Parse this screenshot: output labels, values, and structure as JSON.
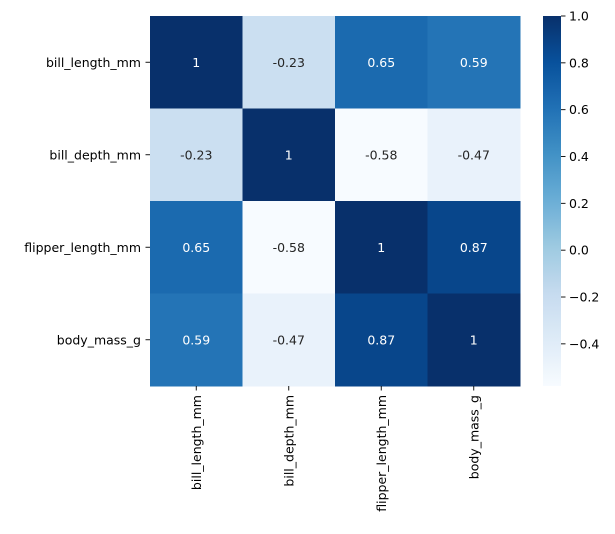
{
  "chart_data": {
    "type": "heatmap",
    "title": "",
    "xlabel": "",
    "ylabel": "",
    "x_categories": [
      "bill_length_mm",
      "bill_depth_mm",
      "flipper_length_mm",
      "body_mass_g"
    ],
    "y_categories": [
      "bill_length_mm",
      "bill_depth_mm",
      "flipper_length_mm",
      "body_mass_g"
    ],
    "values": [
      [
        1,
        -0.23,
        0.65,
        0.59
      ],
      [
        -0.23,
        1,
        -0.58,
        -0.47
      ],
      [
        0.65,
        -0.58,
        1,
        0.87
      ],
      [
        0.59,
        -0.47,
        0.87,
        1
      ]
    ],
    "annotations": [
      [
        "1",
        "-0.23",
        "0.65",
        "0.59"
      ],
      [
        "-0.23",
        "1",
        "-0.58",
        "-0.47"
      ],
      [
        "0.65",
        "-0.58",
        "1",
        "0.87"
      ],
      [
        "0.59",
        "-0.47",
        "0.87",
        "1"
      ]
    ],
    "colormap": "Blues",
    "colormap_stops": [
      "#f7fbff",
      "#deebf7",
      "#c6dbef",
      "#9ecae1",
      "#6baed6",
      "#4292c6",
      "#2171b5",
      "#08519c",
      "#08306b"
    ],
    "vmin": -0.58,
    "vmax": 1,
    "colorbar": {
      "ticks": [
        1.0,
        0.8,
        0.6,
        0.4,
        0.2,
        0.0,
        -0.2,
        -0.4
      ],
      "tick_labels": [
        "1.0",
        "0.8",
        "0.6",
        "0.4",
        "0.2",
        "0.0",
        "−0.2",
        "−0.4"
      ]
    },
    "annotation_colors": {
      "dark_text": "#262626",
      "light_text": "#ffffff"
    }
  }
}
